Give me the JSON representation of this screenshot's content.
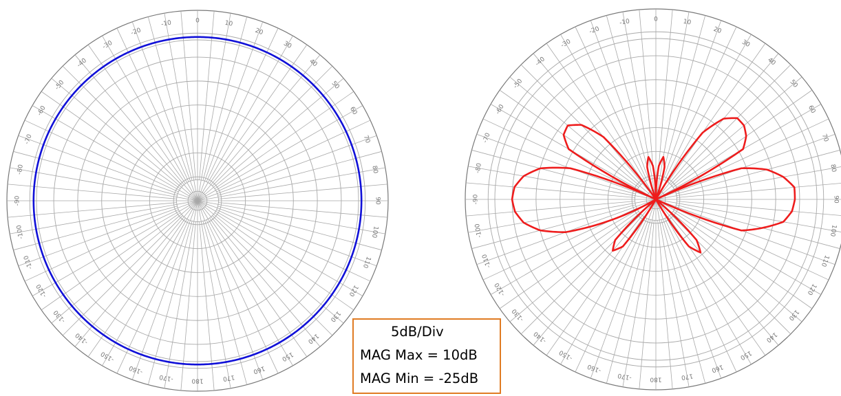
{
  "legend": {
    "scale": "5dB/Div",
    "max": "MAG Max = 10dB",
    "min": "MAG Min = -25dB"
  },
  "colors": {
    "left_trace": "#1010d8",
    "right_trace": "#ee1c1c",
    "grid": "#a8a8a8",
    "legend_border": "#e07a22"
  },
  "chart_data": [
    {
      "type": "polar-line",
      "title": "",
      "radial_range_db": [
        -25,
        10
      ],
      "radial_step_db": 5,
      "angle_ticks_deg": [
        -170,
        -160,
        -150,
        -140,
        -130,
        -120,
        -110,
        -100,
        -90,
        -80,
        -70,
        -60,
        -50,
        -40,
        -30,
        -20,
        -10,
        0,
        10,
        20,
        30,
        40,
        50,
        60,
        70,
        80,
        90,
        100,
        110,
        120,
        130,
        140,
        150,
        160,
        170,
        180
      ],
      "angle_labels": [
        "-170",
        "-160",
        "-150",
        "-140",
        "-130",
        "-120",
        "-110",
        "-100",
        "-90",
        "-80",
        "-70",
        "-60",
        "-50",
        "-40",
        "-30",
        "-20",
        "-10",
        "0",
        "10",
        "20",
        "30",
        "40",
        "50",
        "60",
        "70",
        "80",
        "90",
        "100",
        "110",
        "120",
        "130",
        "140",
        "150",
        "160",
        "170",
        "180"
      ],
      "series": [
        {
          "angles_deg": [
            -180,
            -150,
            -120,
            -90,
            -60,
            -30,
            0,
            30,
            60,
            90,
            120,
            150,
            180
          ],
          "values_db": [
            9.2,
            9.2,
            9.2,
            9.2,
            9.2,
            9.2,
            9.2,
            9.2,
            9.2,
            9.2,
            9.2,
            9.2,
            9.2
          ]
        }
      ]
    },
    {
      "type": "polar-line",
      "title": "",
      "radial_range_db": [
        -25,
        10
      ],
      "radial_step_db": 5,
      "angle_ticks_deg": [
        -170,
        -160,
        -150,
        -140,
        -130,
        -120,
        -110,
        -100,
        -90,
        -80,
        -70,
        -60,
        -50,
        -40,
        -30,
        -20,
        -10,
        0,
        10,
        20,
        30,
        40,
        50,
        60,
        70,
        80,
        90,
        100,
        110,
        120,
        130,
        140,
        150,
        160,
        170,
        180
      ],
      "angle_labels": [
        "-170",
        "-160",
        "-150",
        "-140",
        "-130",
        "-120",
        "-110",
        "-100",
        "-90",
        "-80",
        "-70",
        "-60",
        "-50",
        "-40",
        "-30",
        "-20",
        "-10",
        "0",
        "10",
        "20",
        "30",
        "40",
        "50",
        "60",
        "70",
        "80",
        "90",
        "100",
        "110",
        "120",
        "130",
        "140",
        "150",
        "160",
        "170",
        "180"
      ],
      "series": [
        {
          "angles_deg": [
            -180,
            -170,
            -160,
            -150,
            -145,
            -140,
            -135,
            -130,
            -120,
            -110,
            -105,
            -100,
            -95,
            -90,
            -85,
            -80,
            -75,
            -70,
            -65,
            -60,
            -55,
            -50,
            -45,
            -40,
            -35,
            -30,
            -20,
            -15,
            -10,
            -5,
            0,
            5,
            10,
            15,
            20,
            30,
            35,
            40,
            45,
            50,
            55,
            60,
            65,
            70,
            75,
            80,
            85,
            90,
            95,
            100,
            105,
            110,
            115,
            120,
            130,
            135,
            140,
            145,
            150,
            160,
            170,
            180
          ],
          "values_db": [
            -25,
            -25,
            -25,
            -25,
            -13,
            -11,
            -13,
            -25,
            -25,
            -5,
            0,
            3,
            4.5,
            5,
            4.6,
            3,
            0,
            -6,
            -25,
            -4,
            -1.5,
            -1,
            -3,
            -8,
            -25,
            -25,
            -25,
            -18,
            -16,
            -18,
            -25,
            -18,
            -16,
            -18,
            -25,
            -25,
            -8,
            -3,
            -1,
            -1,
            -2,
            -4,
            -25,
            -6,
            -1,
            2,
            4,
            4,
            3.5,
            2,
            -2,
            -6,
            -25,
            -25,
            -25,
            -13,
            -10.5,
            -13,
            -25,
            -25,
            -25,
            -25
          ]
        }
      ]
    }
  ]
}
